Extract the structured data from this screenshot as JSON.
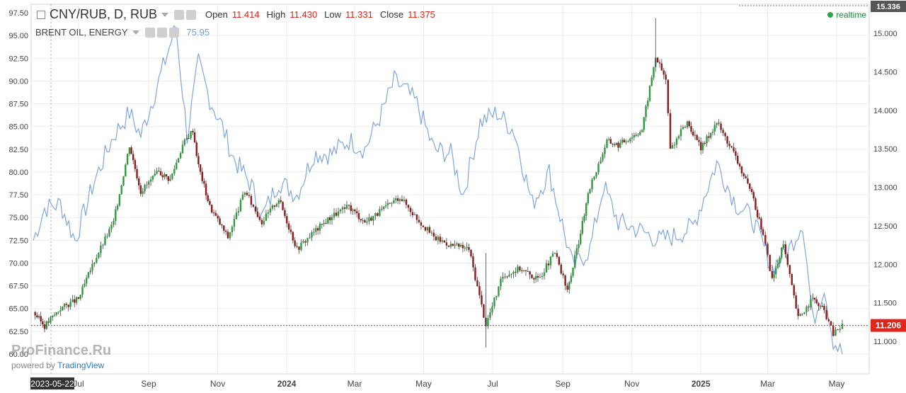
{
  "header": {
    "symbol": "CNY/RUB, D, RUB",
    "open_label": "Open",
    "open_value": "11.414",
    "high_label": "High",
    "high_value": "11.430",
    "low_label": "Low",
    "low_value": "11.331",
    "close_label": "Close",
    "close_value": "11.375",
    "overlay_symbol": "BRENT OIL, ENERGY",
    "overlay_value": "75.95",
    "realtime": "realtime"
  },
  "watermark": {
    "brand": "ProFinance.Ru",
    "powered_prefix": "powered by",
    "powered_link": "TradingView"
  },
  "colors": {
    "up": "#2e9b3e",
    "down": "#8b1a1a",
    "oil_line": "#7fa6dc",
    "last_price": "#e0251b",
    "grid": "#ebebeb"
  },
  "chart_data": {
    "type": "candlestick",
    "series": [
      {
        "name": "CNY/RUB",
        "axis": "right",
        "ohlc_points": [
          [
            "2023-05-22",
            11.38
          ],
          [
            "2023-06-01",
            11.2
          ],
          [
            "2023-06-15",
            11.43
          ],
          [
            "2023-07-01",
            11.55
          ],
          [
            "2023-07-15",
            12.05
          ],
          [
            "2023-08-01",
            12.55
          ],
          [
            "2023-08-15",
            13.55
          ],
          [
            "2023-08-25",
            12.95
          ],
          [
            "2023-09-10",
            13.2
          ],
          [
            "2023-09-20",
            13.1
          ],
          [
            "2023-10-01",
            13.55
          ],
          [
            "2023-10-10",
            13.75
          ],
          [
            "2023-10-15",
            13.28
          ],
          [
            "2023-10-25",
            12.75
          ],
          [
            "2023-11-10",
            12.35
          ],
          [
            "2023-11-25",
            12.95
          ],
          [
            "2023-12-10",
            12.55
          ],
          [
            "2023-12-25",
            12.85
          ],
          [
            "2024-01-10",
            12.2
          ],
          [
            "2024-01-25",
            12.42
          ],
          [
            "2024-02-10",
            12.63
          ],
          [
            "2024-02-25",
            12.75
          ],
          [
            "2024-03-10",
            12.55
          ],
          [
            "2024-03-25",
            12.7
          ],
          [
            "2024-04-10",
            12.88
          ],
          [
            "2024-04-25",
            12.6
          ],
          [
            "2024-05-10",
            12.35
          ],
          [
            "2024-05-25",
            12.25
          ],
          [
            "2024-06-10",
            12.2
          ],
          [
            "2024-06-25",
            11.22
          ],
          [
            "2024-07-10",
            11.85
          ],
          [
            "2024-07-25",
            11.95
          ],
          [
            "2024-08-10",
            11.8
          ],
          [
            "2024-08-25",
            12.15
          ],
          [
            "2024-09-05",
            11.65
          ],
          [
            "2024-09-15",
            12.3
          ],
          [
            "2024-09-25",
            13.0
          ],
          [
            "2024-10-10",
            13.6
          ],
          [
            "2024-10-20",
            13.55
          ],
          [
            "2024-11-10",
            13.75
          ],
          [
            "2024-11-22",
            14.7
          ],
          [
            "2024-12-01",
            14.4
          ],
          [
            "2024-12-05",
            13.5
          ],
          [
            "2024-12-20",
            13.85
          ],
          [
            "2025-01-01",
            13.5
          ],
          [
            "2025-01-15",
            13.85
          ],
          [
            "2025-01-30",
            13.45
          ],
          [
            "2025-02-15",
            12.9
          ],
          [
            "2025-02-25",
            12.4
          ],
          [
            "2025-03-05",
            11.8
          ],
          [
            "2025-03-15",
            12.25
          ],
          [
            "2025-03-28",
            11.3
          ],
          [
            "2025-04-10",
            11.55
          ],
          [
            "2025-04-20",
            11.4
          ],
          [
            "2025-04-28",
            11.1
          ],
          [
            "2025-05-06",
            11.21
          ]
        ]
      },
      {
        "name": "BRENT OIL, ENERGY",
        "axis": "left",
        "points": [
          [
            "2023-05-22",
            72.5
          ],
          [
            "2023-06-01",
            76.0
          ],
          [
            "2023-06-15",
            76.5
          ],
          [
            "2023-06-28",
            72.5
          ],
          [
            "2023-07-15",
            79.0
          ],
          [
            "2023-08-01",
            84.0
          ],
          [
            "2023-08-15",
            86.5
          ],
          [
            "2023-08-25",
            84.0
          ],
          [
            "2023-09-10",
            90.0
          ],
          [
            "2023-09-25",
            96.0
          ],
          [
            "2023-10-05",
            84.0
          ],
          [
            "2023-10-15",
            92.0
          ],
          [
            "2023-10-25",
            88.0
          ],
          [
            "2023-11-05",
            85.0
          ],
          [
            "2023-11-15",
            81.5
          ],
          [
            "2023-12-01",
            78.5
          ],
          [
            "2023-12-10",
            75.0
          ],
          [
            "2023-12-25",
            79.0
          ],
          [
            "2024-01-10",
            77.5
          ],
          [
            "2024-01-25",
            82.0
          ],
          [
            "2024-02-10",
            82.0
          ],
          [
            "2024-02-25",
            83.5
          ],
          [
            "2024-03-10",
            82.5
          ],
          [
            "2024-03-25",
            86.5
          ],
          [
            "2024-04-05",
            90.0
          ],
          [
            "2024-04-15",
            89.0
          ],
          [
            "2024-04-25",
            87.5
          ],
          [
            "2024-05-10",
            82.5
          ],
          [
            "2024-05-25",
            82.0
          ],
          [
            "2024-06-05",
            77.5
          ],
          [
            "2024-06-20",
            85.5
          ],
          [
            "2024-07-05",
            86.5
          ],
          [
            "2024-07-20",
            84.5
          ],
          [
            "2024-08-05",
            76.5
          ],
          [
            "2024-08-20",
            80.0
          ],
          [
            "2024-09-10",
            69.5
          ],
          [
            "2024-09-25",
            71.5
          ],
          [
            "2024-10-07",
            78.5
          ],
          [
            "2024-10-20",
            74.5
          ],
          [
            "2024-11-10",
            73.5
          ],
          [
            "2024-11-25",
            72.5
          ],
          [
            "2024-12-10",
            73.0
          ],
          [
            "2024-12-25",
            74.0
          ],
          [
            "2025-01-15",
            81.0
          ],
          [
            "2025-02-01",
            76.5
          ],
          [
            "2025-02-15",
            75.0
          ],
          [
            "2025-03-05",
            69.5
          ],
          [
            "2025-03-20",
            71.5
          ],
          [
            "2025-04-01",
            74.5
          ],
          [
            "2025-04-10",
            63.5
          ],
          [
            "2025-04-20",
            67.5
          ],
          [
            "2025-04-28",
            61.5
          ],
          [
            "2025-05-06",
            60.0
          ]
        ]
      }
    ],
    "x_ticks": [
      "2023-05-22",
      "Jul",
      "Sep",
      "Nov",
      "2024",
      "Mar",
      "May",
      "Jul",
      "Sep",
      "Nov",
      "2025",
      "Mar",
      "May"
    ],
    "left_ticks": [
      "60.00",
      "62.50",
      "65.00",
      "67.50",
      "70.00",
      "72.50",
      "75.00",
      "77.50",
      "80.00",
      "82.50",
      "85.00",
      "87.50",
      "90.00",
      "92.50",
      "95.00",
      "97.50"
    ],
    "right_ticks": [
      "11.000",
      "11.500",
      "12.000",
      "12.500",
      "13.000",
      "13.500",
      "14.000",
      "14.500",
      "15.000"
    ],
    "left_ylim": [
      60,
      97.5
    ],
    "right_ylim": [
      10.92,
      15.34
    ],
    "last_price_label": "11.206",
    "top_price_label": "15.336",
    "grid": true
  }
}
